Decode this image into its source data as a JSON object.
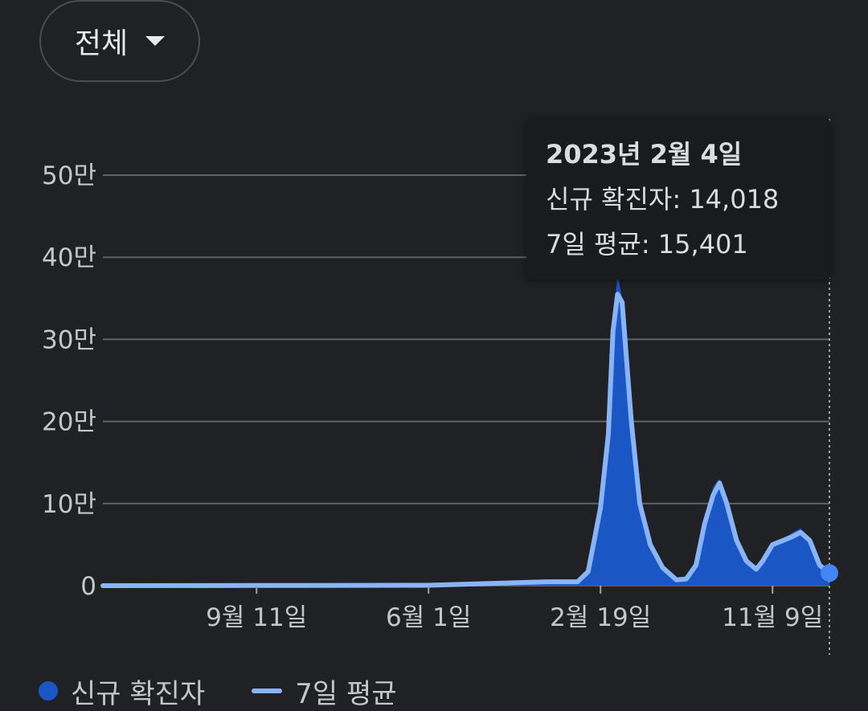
{
  "filter": {
    "label": "전체"
  },
  "chart_data": {
    "type": "area",
    "ylim": [
      0,
      500000
    ],
    "y_ticks": [
      {
        "value": 0,
        "label": "0"
      },
      {
        "value": 100000,
        "label": "10만"
      },
      {
        "value": 200000,
        "label": "20만"
      },
      {
        "value": 300000,
        "label": "30만"
      },
      {
        "value": 400000,
        "label": "40만"
      },
      {
        "value": 500000,
        "label": "50만"
      }
    ],
    "x_ticks": [
      {
        "date": "2020-09-11",
        "label": "9월 11일"
      },
      {
        "date": "2021-06-01",
        "label": "6월 1일"
      },
      {
        "date": "2022-02-19",
        "label": "2월 19일"
      },
      {
        "date": "2022-11-09",
        "label": "11월 9일"
      }
    ],
    "grid": true,
    "legend_position": "bottom-left",
    "colors": {
      "new_cases": "#1a56c4",
      "avg7": "#8ab4f8",
      "grid": "#5f6368",
      "marker": "#4285f4"
    },
    "series": [
      {
        "name": "신규 확진자",
        "points": [
          [
            "2020-01-20",
            0
          ],
          [
            "2020-09-11",
            300
          ],
          [
            "2021-06-01",
            500
          ],
          [
            "2021-12-01",
            5000
          ],
          [
            "2022-01-15",
            5000
          ],
          [
            "2022-01-31",
            18000
          ],
          [
            "2022-02-19",
            100000
          ],
          [
            "2022-03-03",
            190000
          ],
          [
            "2022-03-10",
            320000
          ],
          [
            "2022-03-17",
            380000
          ],
          [
            "2022-03-24",
            350000
          ],
          [
            "2022-04-07",
            200000
          ],
          [
            "2022-04-20",
            110000
          ],
          [
            "2022-05-06",
            55000
          ],
          [
            "2022-05-25",
            25000
          ],
          [
            "2022-06-15",
            8000
          ],
          [
            "2022-06-30",
            8000
          ],
          [
            "2022-07-15",
            30000
          ],
          [
            "2022-07-28",
            80000
          ],
          [
            "2022-08-10",
            120000
          ],
          [
            "2022-08-20",
            130000
          ],
          [
            "2022-08-31",
            100000
          ],
          [
            "2022-09-15",
            55000
          ],
          [
            "2022-09-30",
            32000
          ],
          [
            "2022-10-15",
            20000
          ],
          [
            "2022-10-25",
            30000
          ],
          [
            "2022-11-09",
            50000
          ],
          [
            "2022-11-25",
            55000
          ],
          [
            "2022-12-10",
            65000
          ],
          [
            "2022-12-22",
            70000
          ],
          [
            "2023-01-05",
            55000
          ],
          [
            "2023-01-20",
            25000
          ],
          [
            "2023-02-04",
            14018
          ]
        ]
      },
      {
        "name": "7일 평균",
        "points": [
          [
            "2020-01-20",
            0
          ],
          [
            "2020-09-11",
            200
          ],
          [
            "2021-06-01",
            450
          ],
          [
            "2021-12-01",
            4800
          ],
          [
            "2022-01-15",
            4800
          ],
          [
            "2022-01-31",
            17000
          ],
          [
            "2022-02-19",
            95000
          ],
          [
            "2022-03-03",
            185000
          ],
          [
            "2022-03-10",
            310000
          ],
          [
            "2022-03-17",
            355000
          ],
          [
            "2022-03-24",
            345000
          ],
          [
            "2022-04-07",
            200000
          ],
          [
            "2022-04-20",
            100000
          ],
          [
            "2022-05-06",
            50000
          ],
          [
            "2022-05-25",
            22000
          ],
          [
            "2022-06-15",
            7000
          ],
          [
            "2022-06-30",
            8000
          ],
          [
            "2022-07-15",
            25000
          ],
          [
            "2022-07-28",
            75000
          ],
          [
            "2022-08-10",
            110000
          ],
          [
            "2022-08-20",
            125000
          ],
          [
            "2022-08-31",
            100000
          ],
          [
            "2022-09-15",
            55000
          ],
          [
            "2022-09-30",
            30000
          ],
          [
            "2022-10-15",
            20000
          ],
          [
            "2022-10-25",
            30000
          ],
          [
            "2022-11-09",
            50000
          ],
          [
            "2022-11-25",
            55000
          ],
          [
            "2022-12-10",
            60000
          ],
          [
            "2022-12-22",
            65000
          ],
          [
            "2023-01-05",
            55000
          ],
          [
            "2023-01-20",
            25000
          ],
          [
            "2023-02-04",
            15401
          ]
        ]
      }
    ],
    "selected_date": "2023-02-04"
  },
  "tooltip": {
    "title": "2023년 2월 4일",
    "line1": "신규 확진자: 14,018",
    "line2": "7일 평균: 15,401"
  },
  "legend": {
    "items": [
      "신규 확진자",
      "7일 평균"
    ]
  }
}
